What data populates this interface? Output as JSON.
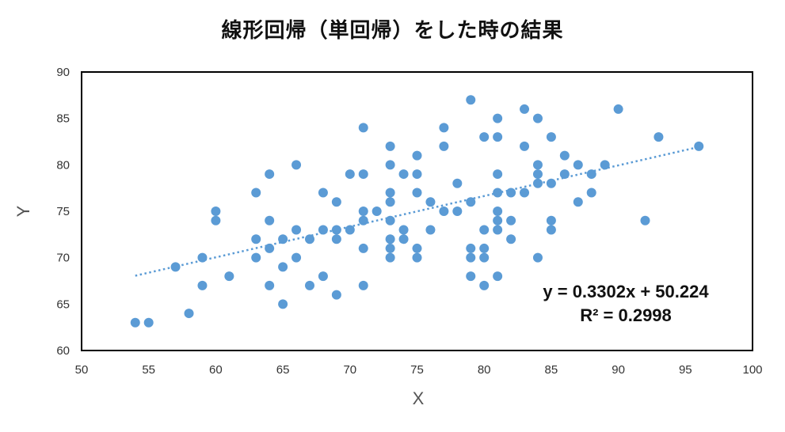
{
  "chart_data": {
    "type": "scatter",
    "title": "線形回帰（単回帰）をした時の結果",
    "xlabel": "X",
    "ylabel": "Y",
    "xlim": [
      50,
      100
    ],
    "ylim": [
      60,
      90
    ],
    "x_ticks": [
      50,
      55,
      60,
      65,
      70,
      75,
      80,
      85,
      90,
      95,
      100
    ],
    "y_ticks": [
      60,
      65,
      70,
      75,
      80,
      85,
      90
    ],
    "grid": false,
    "marker_color": "#5B9BD5",
    "points": [
      [
        54,
        63
      ],
      [
        55,
        63
      ],
      [
        57,
        69
      ],
      [
        58,
        64
      ],
      [
        59,
        70
      ],
      [
        59,
        67
      ],
      [
        60,
        75
      ],
      [
        60,
        74
      ],
      [
        61,
        68
      ],
      [
        63,
        77
      ],
      [
        63,
        72
      ],
      [
        63,
        70
      ],
      [
        64,
        79
      ],
      [
        64,
        74
      ],
      [
        64,
        71
      ],
      [
        64,
        67
      ],
      [
        65,
        72
      ],
      [
        65,
        69
      ],
      [
        65,
        65
      ],
      [
        66,
        80
      ],
      [
        66,
        73
      ],
      [
        66,
        70
      ],
      [
        67,
        72
      ],
      [
        67,
        67
      ],
      [
        68,
        77
      ],
      [
        68,
        73
      ],
      [
        68,
        68
      ],
      [
        69,
        76
      ],
      [
        69,
        73
      ],
      [
        69,
        72
      ],
      [
        69,
        66
      ],
      [
        70,
        79
      ],
      [
        70,
        73
      ],
      [
        71,
        84
      ],
      [
        71,
        79
      ],
      [
        71,
        75
      ],
      [
        71,
        74
      ],
      [
        71,
        71
      ],
      [
        71,
        67
      ],
      [
        72,
        75
      ],
      [
        73,
        82
      ],
      [
        73,
        80
      ],
      [
        73,
        77
      ],
      [
        73,
        76
      ],
      [
        73,
        74
      ],
      [
        73,
        72
      ],
      [
        73,
        71
      ],
      [
        73,
        70
      ],
      [
        74,
        79
      ],
      [
        74,
        73
      ],
      [
        74,
        72
      ],
      [
        75,
        81
      ],
      [
        75,
        79
      ],
      [
        75,
        77
      ],
      [
        75,
        71
      ],
      [
        75,
        70
      ],
      [
        76,
        76
      ],
      [
        76,
        73
      ],
      [
        77,
        84
      ],
      [
        77,
        82
      ],
      [
        77,
        75
      ],
      [
        78,
        78
      ],
      [
        78,
        75
      ],
      [
        79,
        87
      ],
      [
        79,
        76
      ],
      [
        79,
        71
      ],
      [
        79,
        70
      ],
      [
        79,
        68
      ],
      [
        80,
        83
      ],
      [
        80,
        73
      ],
      [
        80,
        71
      ],
      [
        80,
        70
      ],
      [
        80,
        67
      ],
      [
        81,
        85
      ],
      [
        81,
        83
      ],
      [
        81,
        79
      ],
      [
        81,
        77
      ],
      [
        81,
        75
      ],
      [
        81,
        74
      ],
      [
        81,
        73
      ],
      [
        81,
        68
      ],
      [
        82,
        77
      ],
      [
        82,
        74
      ],
      [
        82,
        72
      ],
      [
        83,
        86
      ],
      [
        83,
        82
      ],
      [
        83,
        77
      ],
      [
        84,
        85
      ],
      [
        84,
        80
      ],
      [
        84,
        79
      ],
      [
        84,
        78
      ],
      [
        84,
        70
      ],
      [
        85,
        83
      ],
      [
        85,
        78
      ],
      [
        85,
        74
      ],
      [
        85,
        73
      ],
      [
        86,
        81
      ],
      [
        86,
        79
      ],
      [
        87,
        80
      ],
      [
        87,
        76
      ],
      [
        88,
        79
      ],
      [
        88,
        77
      ],
      [
        89,
        80
      ],
      [
        90,
        86
      ],
      [
        92,
        74
      ],
      [
        93,
        83
      ],
      [
        96,
        82
      ]
    ],
    "trendline": {
      "type": "linear",
      "style": "dotted",
      "slope": 0.3302,
      "intercept": 50.224,
      "x_range": [
        54,
        96
      ],
      "equation_label": "y = 0.3302x + 50.224",
      "r2_label": "R² = 0.2998"
    }
  }
}
